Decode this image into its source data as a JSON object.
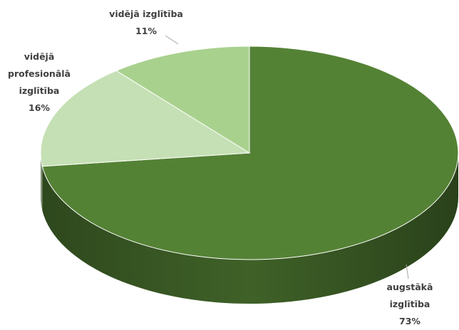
{
  "chart_data": {
    "type": "pie",
    "categories": [
      "augstākā izglītība",
      "vidējā profesionālā izglītība",
      "vidējā izglītība"
    ],
    "values": [
      73,
      16,
      11
    ],
    "value_labels": [
      "73%",
      "16%",
      "11%"
    ],
    "colors": [
      "#548235",
      "#c5e0b4",
      "#a9d18e"
    ]
  }
}
